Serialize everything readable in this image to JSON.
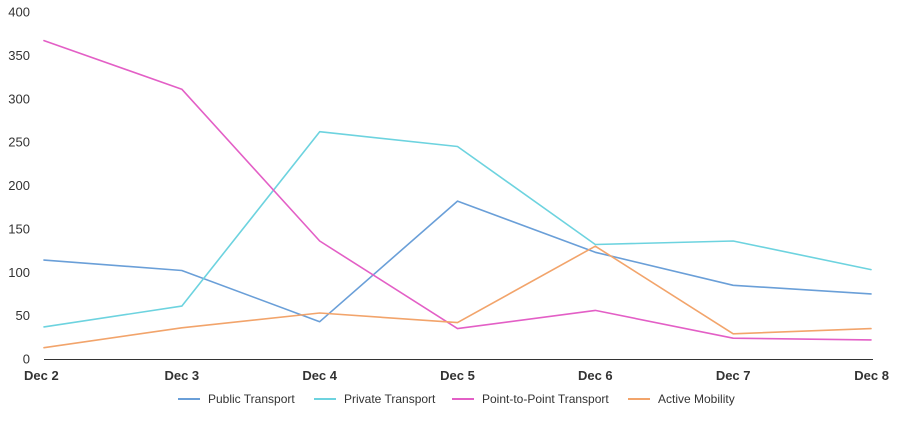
{
  "chart_data": {
    "type": "line",
    "title": "",
    "xlabel": "",
    "ylabel": "",
    "categories": [
      "Dec 2",
      "Dec 3",
      "Dec 4",
      "Dec 5",
      "Dec 6",
      "Dec 7",
      "Dec 8"
    ],
    "ylim": [
      0,
      400
    ],
    "yticks": [
      0,
      50,
      100,
      150,
      200,
      250,
      300,
      350,
      400
    ],
    "grid": false,
    "legend_position": "bottom",
    "series": [
      {
        "name": "Public Transport",
        "color": "#6a9fd8",
        "values": [
          114,
          102,
          43,
          182,
          123,
          85,
          75
        ]
      },
      {
        "name": "Private Transport",
        "color": "#6dd3df",
        "values": [
          37,
          61,
          262,
          245,
          132,
          136,
          103
        ]
      },
      {
        "name": "Point-to-Point Transport",
        "color": "#e35fc6",
        "values": [
          367,
          311,
          136,
          35,
          56,
          24,
          22
        ]
      },
      {
        "name": "Active Mobility",
        "color": "#f2a46b",
        "values": [
          13,
          36,
          53,
          42,
          130,
          29,
          35
        ]
      }
    ]
  }
}
